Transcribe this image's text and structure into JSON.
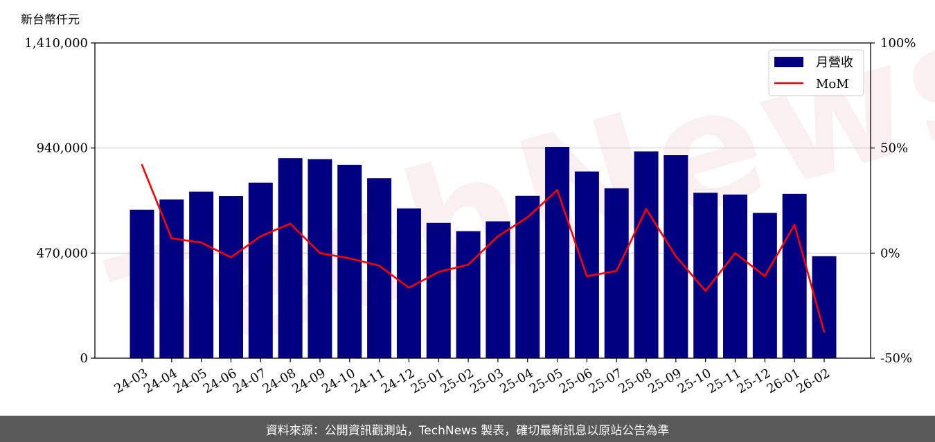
{
  "unit_label": "新台幣仟元",
  "watermark": "TechNews",
  "footer_text": "資料來源：公開資訊觀測站，TechNews 製表，確切最新訊息以原站公告為準",
  "colors": {
    "bar": "#000080",
    "line": "#ff0000",
    "grid": "#cccccc",
    "footer_bg": "#595959"
  },
  "chart_data": {
    "type": "bar",
    "categories": [
      "24-03",
      "24-04",
      "24-05",
      "24-06",
      "24-07",
      "24-08",
      "24-09",
      "24-10",
      "24-11",
      "24-12",
      "25-01",
      "25-02",
      "25-03",
      "25-04",
      "25-05",
      "25-06",
      "25-07",
      "25-08",
      "25-09",
      "25-10",
      "25-11",
      "25-12",
      "26-01",
      "26-02"
    ],
    "series": [
      {
        "name": "月營收",
        "type": "bar",
        "axis": "left",
        "values": [
          664000,
          710000,
          745000,
          725000,
          785000,
          895000,
          890000,
          865000,
          805000,
          670000,
          605000,
          568000,
          612000,
          726000,
          945000,
          835000,
          760000,
          925000,
          908000,
          740000,
          732000,
          650000,
          735000,
          456000
        ]
      },
      {
        "name": "MoM",
        "type": "line",
        "axis": "right",
        "values": [
          42,
          7,
          5,
          -2,
          8,
          14,
          0,
          -2.5,
          -6,
          -16.5,
          -9,
          -5.5,
          8,
          17,
          30,
          -11,
          -8.5,
          21,
          -1.5,
          -18,
          0,
          -11,
          13.5,
          -37.5
        ]
      }
    ],
    "ylim_left": [
      0,
      1410000
    ],
    "yticks_left": [
      "0",
      "470,000",
      "940,000",
      "1,410,000"
    ],
    "yticks_left_values": [
      0,
      470000,
      940000,
      1410000
    ],
    "ylim_right": [
      -50,
      100
    ],
    "yticks_right": [
      "-50%",
      "0%",
      "50%",
      "100%"
    ],
    "yticks_right_values": [
      -50,
      0,
      50,
      100
    ],
    "grid": true,
    "legend_position": "top-right"
  }
}
